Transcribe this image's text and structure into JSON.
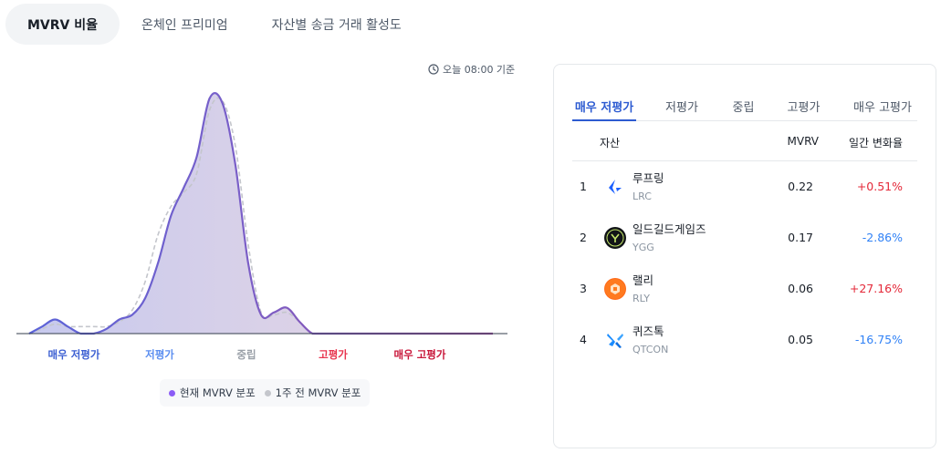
{
  "top_tabs": [
    {
      "label": "MVRV 비율",
      "active": true
    },
    {
      "label": "온체인 프리미엄",
      "active": false
    },
    {
      "label": "자산별 송금 거래 활성도",
      "active": false
    }
  ],
  "chart": {
    "timestamp": "오늘 08:00 기준",
    "icon": "clock-icon",
    "zones": [
      {
        "label": "매우 저평가",
        "color": "#3b5ed2"
      },
      {
        "label": "저평가",
        "color": "#5b8ef0"
      },
      {
        "label": "중립",
        "color": "#9aa0a8"
      },
      {
        "label": "고평가",
        "color": "#e8344e"
      },
      {
        "label": "매우 고평가",
        "color": "#c8163a"
      }
    ],
    "legend": {
      "current": {
        "label": "현재 MVRV 분포",
        "color": "#8b5cf6"
      },
      "prev": {
        "label": "1주 전 MVRV 분포",
        "color": "#c4c6cc"
      }
    }
  },
  "chart_data": {
    "type": "area",
    "title": "",
    "xlabel": "",
    "ylabel": "",
    "x_categories": [
      "매우 저평가",
      "저평가",
      "중립",
      "고평가",
      "매우 고평가"
    ],
    "series": [
      {
        "name": "현재 MVRV 분포",
        "color": "#8b5cf6",
        "x": [
          0,
          0.5,
          1,
          1.5,
          2,
          2.5,
          3,
          3.5,
          4,
          4.5,
          5,
          5.5,
          6,
          6.5,
          7,
          7.5,
          8,
          8.5,
          9,
          9.5,
          10,
          10.5,
          11,
          11.5,
          12,
          12.5,
          13,
          13.5,
          14,
          14.5,
          15,
          15.5,
          16,
          16.5,
          17,
          17.5,
          18
        ],
        "values": [
          0,
          3,
          6,
          3,
          0,
          0,
          2,
          6,
          8,
          15,
          30,
          50,
          62,
          75,
          100,
          98,
          72,
          30,
          8,
          9,
          11,
          5,
          0,
          0,
          0,
          0,
          0,
          0,
          0,
          0,
          0,
          0,
          0,
          0,
          0,
          0,
          0
        ]
      },
      {
        "name": "1주 전 MVRV 분포",
        "color": "#c4c6cc",
        "x": [
          0,
          0.5,
          1,
          1.5,
          2,
          2.5,
          3,
          3.5,
          4,
          4.5,
          5,
          5.5,
          6,
          6.5,
          7,
          7.5,
          8,
          8.5,
          9,
          9.5,
          10,
          10.5,
          11,
          11.5,
          12,
          12.5,
          13,
          13.5,
          14,
          14.5,
          15,
          15.5,
          16,
          16.5,
          17,
          17.5,
          18
        ],
        "values": [
          0,
          2,
          4,
          3,
          3,
          3,
          3,
          5,
          10,
          22,
          42,
          54,
          60,
          68,
          95,
          99,
          80,
          38,
          9,
          8,
          9,
          5,
          0,
          0,
          0,
          0,
          0,
          0,
          0,
          0,
          0,
          0,
          0,
          0,
          0,
          0,
          0
        ]
      }
    ],
    "ylim": [
      0,
      100
    ],
    "grid": false,
    "legend_position": "bottom"
  },
  "panel": {
    "tabs": [
      {
        "label": "매우 저평가",
        "active": true
      },
      {
        "label": "저평가",
        "active": false
      },
      {
        "label": "중립",
        "active": false
      },
      {
        "label": "고평가",
        "active": false
      },
      {
        "label": "매우 고평가",
        "active": false
      }
    ],
    "columns": {
      "asset": "자산",
      "mvrv": "MVRV",
      "change": "일간 변화율"
    },
    "rows": [
      {
        "rank": "1",
        "name": "루프링",
        "ticker": "LRC",
        "mvrv": "0.22",
        "change": "+0.51%",
        "dir": "pos",
        "icon": "loopring-logo-icon"
      },
      {
        "rank": "2",
        "name": "일드길드게임즈",
        "ticker": "YGG",
        "mvrv": "0.17",
        "change": "-2.86%",
        "dir": "neg",
        "icon": "ygg-logo-icon"
      },
      {
        "rank": "3",
        "name": "랠리",
        "ticker": "RLY",
        "mvrv": "0.06",
        "change": "+27.16%",
        "dir": "pos",
        "icon": "rally-logo-icon"
      },
      {
        "rank": "4",
        "name": "퀴즈톡",
        "ticker": "QTCON",
        "mvrv": "0.05",
        "change": "-16.75%",
        "dir": "neg",
        "icon": "quiztok-logo-icon"
      }
    ]
  }
}
